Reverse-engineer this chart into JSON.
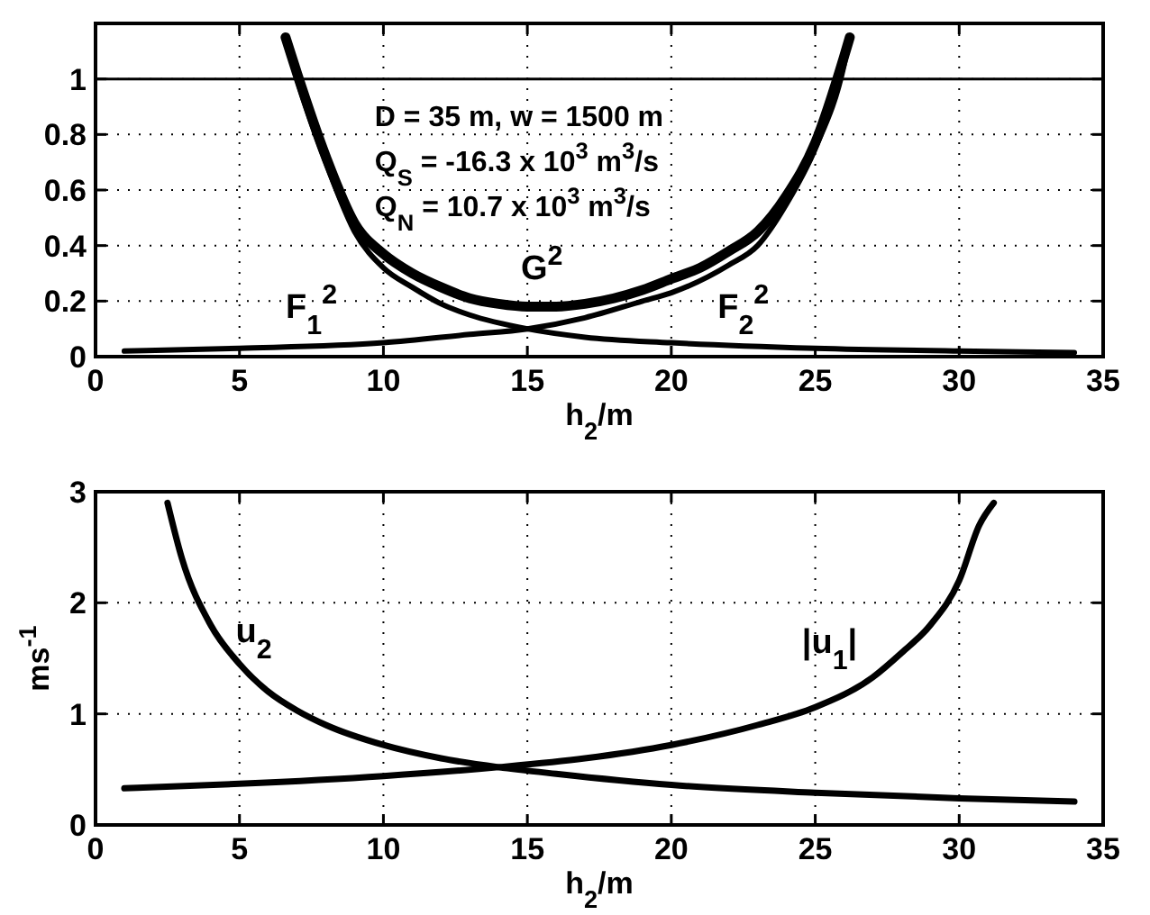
{
  "chart_data": [
    {
      "type": "line",
      "xlabel": "h$_{2}$/m",
      "xlim": [
        0,
        35
      ],
      "xticks": [
        0,
        5,
        10,
        15,
        20,
        25,
        30,
        35
      ],
      "ylim": [
        0,
        1.2
      ],
      "yticks": [
        0,
        0.2,
        0.4,
        0.6,
        0.8,
        1
      ],
      "grid": true,
      "line_style": "solid",
      "ref_lines": [
        {
          "axis": "y",
          "value": 1,
          "color": "#000000"
        }
      ],
      "annotations": [
        "D = 35 m, w = 1500 m",
        "Q$_{S}$ = -16.3 x 10$^{3}$ m$^{3}$/s",
        "Q$_{N}$ =  10.7 x 10$^{3}$ m$^{3}$/s"
      ],
      "series": [
        {
          "name": "F$_{1}$$^{2}$",
          "color": "#000000",
          "x": [
            1,
            5,
            10,
            13,
            15,
            17,
            19,
            20,
            22,
            23,
            24,
            25,
            26,
            26.2
          ],
          "values": [
            0.02,
            0.03,
            0.05,
            0.08,
            0.1,
            0.14,
            0.2,
            0.23,
            0.33,
            0.4,
            0.55,
            0.75,
            1.05,
            1.15
          ]
        },
        {
          "name": "F$_{2}$$^{2}$",
          "color": "#000000",
          "x": [
            6.6,
            7,
            8,
            9,
            10,
            11,
            12,
            13,
            15,
            17,
            20,
            25,
            30,
            34
          ],
          "values": [
            1.15,
            1.0,
            0.7,
            0.45,
            0.32,
            0.25,
            0.19,
            0.15,
            0.1,
            0.07,
            0.05,
            0.03,
            0.02,
            0.015
          ]
        },
        {
          "name": "G$^{2}$",
          "color": "#000000",
          "x": [
            6.6,
            7,
            8,
            9,
            10,
            11,
            12,
            13,
            14,
            15,
            16,
            17,
            18,
            19,
            20,
            21,
            22,
            23,
            24,
            25,
            26,
            26.2
          ],
          "values": [
            1.15,
            1.02,
            0.72,
            0.48,
            0.37,
            0.3,
            0.25,
            0.21,
            0.19,
            0.18,
            0.18,
            0.19,
            0.21,
            0.24,
            0.28,
            0.32,
            0.38,
            0.45,
            0.58,
            0.77,
            1.08,
            1.15
          ]
        }
      ]
    },
    {
      "type": "line",
      "xlabel": "h$_{2}$/m",
      "ylabel": "ms$^{-1}$",
      "xlim": [
        0,
        35
      ],
      "xticks": [
        0,
        5,
        10,
        15,
        20,
        25,
        30,
        35
      ],
      "ylim": [
        0,
        3
      ],
      "yticks": [
        0,
        1,
        2,
        3
      ],
      "grid": true,
      "line_style": "solid",
      "series": [
        {
          "name": "u$_{2}$",
          "color": "#000000",
          "x": [
            2.5,
            3,
            4,
            5,
            6,
            7,
            8,
            10,
            12,
            14,
            16,
            20,
            25,
            30,
            34
          ],
          "values": [
            2.9,
            2.4,
            1.8,
            1.45,
            1.2,
            1.03,
            0.9,
            0.72,
            0.6,
            0.52,
            0.46,
            0.36,
            0.29,
            0.24,
            0.21
          ]
        },
        {
          "name": "|u$_{1}$|",
          "color": "#000000",
          "x": [
            1,
            5,
            10,
            14,
            17,
            20,
            23,
            25,
            27,
            28,
            29,
            30,
            30.7,
            31.2
          ],
          "values": [
            0.33,
            0.37,
            0.44,
            0.52,
            0.6,
            0.72,
            0.9,
            1.06,
            1.33,
            1.55,
            1.8,
            2.2,
            2.7,
            2.9
          ]
        }
      ]
    }
  ]
}
